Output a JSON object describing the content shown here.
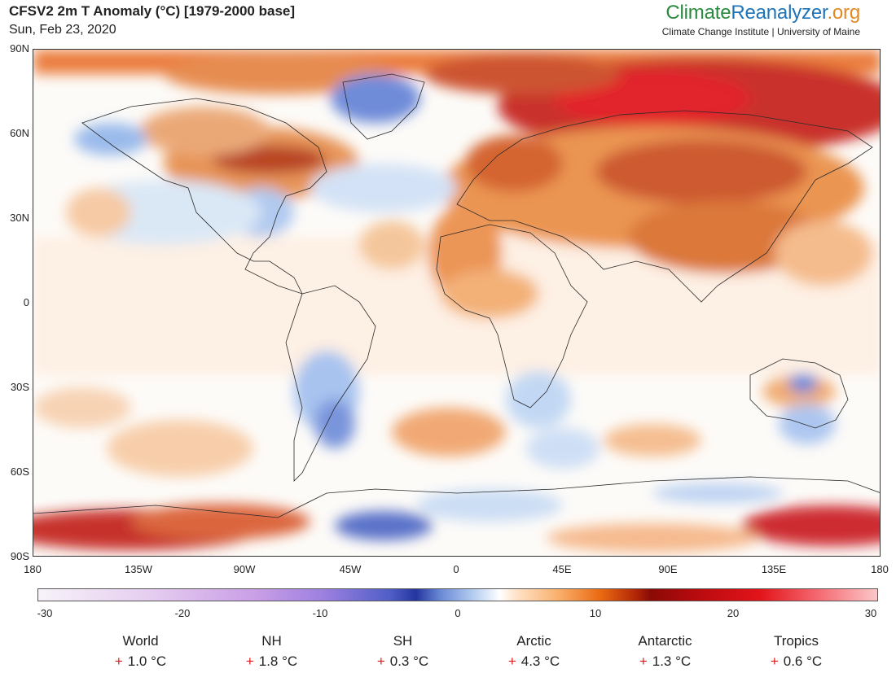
{
  "header": {
    "title": "CFSV2 2m T Anomaly (°C) [1979-2000 base]",
    "date": "Sun, Feb 23, 2020"
  },
  "brand": {
    "name_part1": "Climate",
    "name_part2": "Reanalyzer",
    "name_part3": ".org",
    "subtitle": "Climate Change Institute | University of Maine"
  },
  "map": {
    "lat_labels": [
      "90N",
      "60N",
      "30N",
      "0",
      "30S",
      "60S",
      "90S"
    ],
    "lon_labels": [
      "180",
      "135W",
      "90W",
      "45W",
      "0",
      "45E",
      "90E",
      "135E",
      "180"
    ]
  },
  "colorbar": {
    "range": [
      -30,
      30
    ],
    "ticks": [
      "-30",
      "-20",
      "-10",
      "0",
      "10",
      "20",
      "30"
    ]
  },
  "stats": [
    {
      "label": "World",
      "sign": "+",
      "value": "1.0 °C"
    },
    {
      "label": "NH",
      "sign": "+",
      "value": "1.8 °C"
    },
    {
      "label": "SH",
      "sign": "+",
      "value": "0.3 °C"
    },
    {
      "label": "Arctic",
      "sign": "+",
      "value": "4.3 °C"
    },
    {
      "label": "Antarctic",
      "sign": "+",
      "value": "1.3 °C"
    },
    {
      "label": "Tropics",
      "sign": "+",
      "value": "0.6 °C"
    }
  ]
}
